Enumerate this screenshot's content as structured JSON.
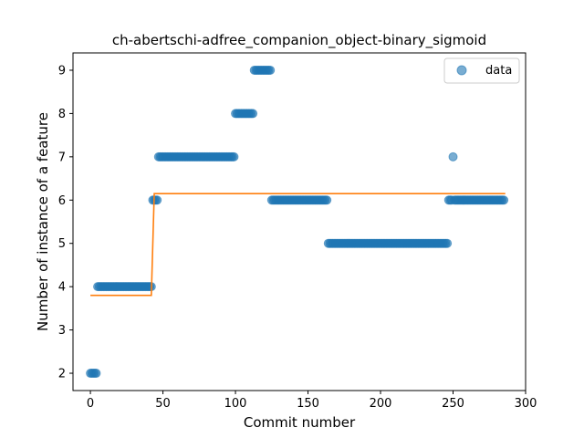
{
  "chart_data": {
    "type": "scatter",
    "title": "ch-abertschi-adfree_companion_object-binary_sigmoid",
    "xlabel": "Commit number",
    "ylabel": "Number of instance of a feature",
    "xlim": [
      -12,
      300
    ],
    "ylim": [
      1.6,
      9.4
    ],
    "xticks": [
      0,
      50,
      100,
      150,
      200,
      250,
      300
    ],
    "yticks": [
      2,
      3,
      4,
      5,
      6,
      7,
      8,
      9
    ],
    "grid": false,
    "legend": {
      "placement": "top-right",
      "entries": [
        "data"
      ]
    },
    "colors": {
      "data": "#1f77b4",
      "fit": "#ff7f0e"
    },
    "series": [
      {
        "name": "data",
        "kind": "scatter",
        "segments": [
          {
            "x_start": 0,
            "x_end": 4,
            "y": 2
          },
          {
            "x_start": 5,
            "x_end": 42,
            "y": 4
          },
          {
            "x_start": 43,
            "x_end": 46,
            "y": 6
          },
          {
            "x_start": 47,
            "x_end": 99,
            "y": 7
          },
          {
            "x_start": 100,
            "x_end": 112,
            "y": 8
          },
          {
            "x_start": 113,
            "x_end": 124,
            "y": 9
          },
          {
            "x_start": 125,
            "x_end": 163,
            "y": 6
          },
          {
            "x_start": 164,
            "x_end": 246,
            "y": 5
          },
          {
            "x_start": 247,
            "x_end": 249,
            "y": 6
          },
          {
            "x_start": 250,
            "x_end": 250,
            "y": 7
          },
          {
            "x_start": 251,
            "x_end": 285,
            "y": 6
          }
        ]
      },
      {
        "kind": "line",
        "points": [
          [
            0,
            3.8
          ],
          [
            42,
            3.8
          ],
          [
            44,
            6.15
          ],
          [
            286,
            6.15
          ]
        ]
      }
    ]
  }
}
